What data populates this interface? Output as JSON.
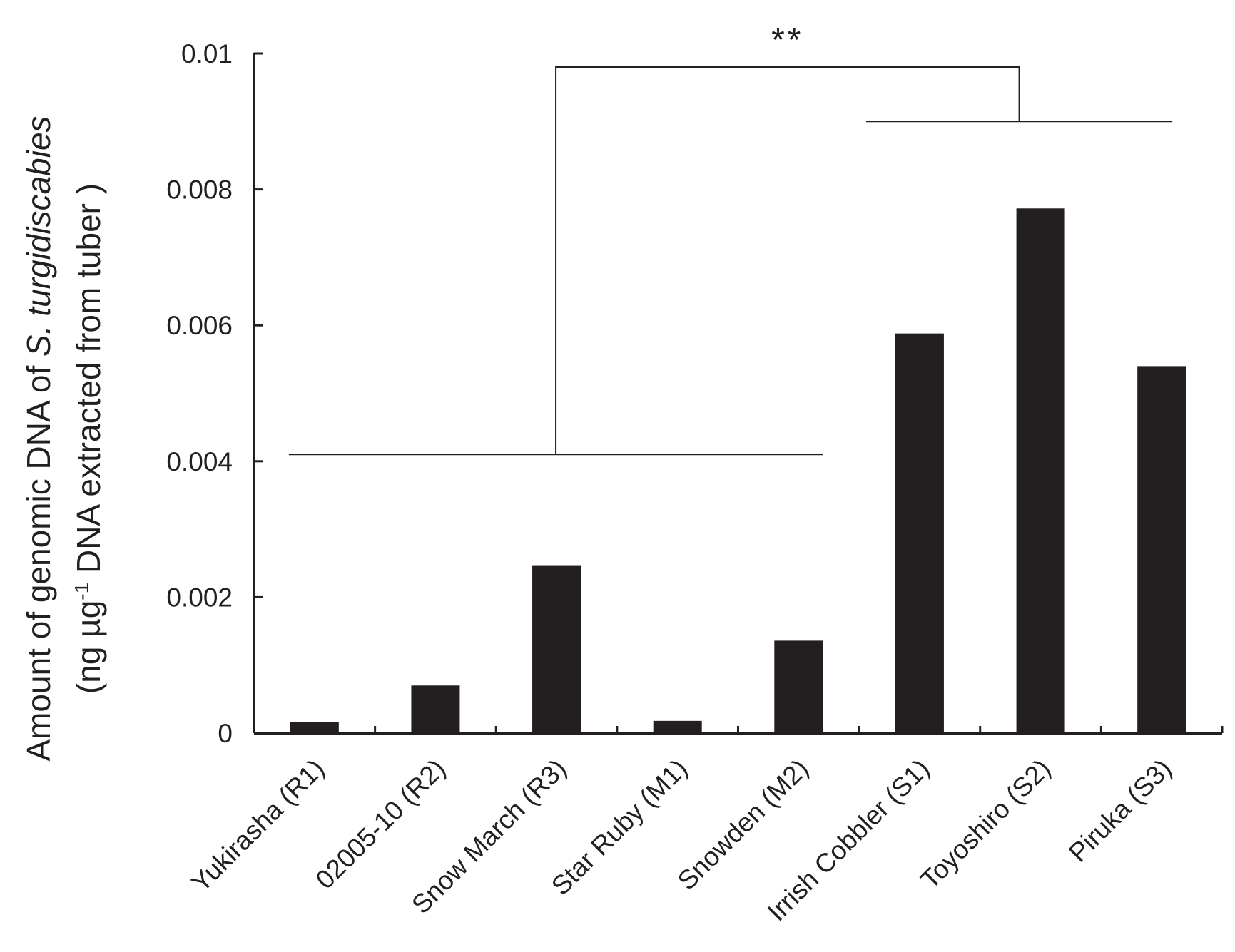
{
  "chart_data": {
    "type": "bar",
    "categories": [
      "Yukirasha (R1)",
      "02005-10 (R2)",
      "Snow March (R3)",
      "Star Ruby (M1)",
      "Snowden (M2)",
      "Irrish Cobbler (S1)",
      "Toyoshiro (S2)",
      "Piruka (S3)"
    ],
    "values": [
      0.00016,
      0.0007,
      0.00246,
      0.00018,
      0.00136,
      0.00588,
      0.00772,
      0.0054
    ],
    "ylim": [
      0,
      0.01
    ],
    "yticks": [
      "0",
      "0.002",
      "0.004",
      "0.006",
      "0.008",
      "0.01"
    ],
    "ylabel": {
      "line1_prefix": "Amount of genomic DNA of ",
      "line1_italic": "S. turgidiscabies",
      "line2_prefix": "(ng µg",
      "line2_sup": "-1",
      "line2_suffix": " DNA extracted from tuber )"
    },
    "bar_color": "#231f20",
    "grid": false,
    "annotations": [
      {
        "type": "bracket",
        "label": "**",
        "group1": [
          0,
          4
        ],
        "group1_level": 0.0041,
        "group2": [
          5,
          7
        ],
        "group2_level": 0.009,
        "top_level": 0.0098
      }
    ]
  }
}
